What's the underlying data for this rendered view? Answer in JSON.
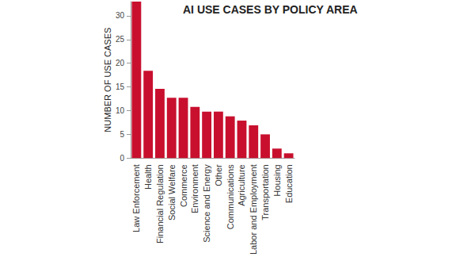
{
  "chart_data": {
    "type": "bar",
    "title": "AI USE CASES BY POLICY AREA",
    "y_label": "NUMBER OF USE CASES",
    "categories": [
      "Law Enforcement",
      "Health",
      "Financial Regulation",
      "Social Welfare",
      "Commerce",
      "Environment",
      "Science and Energy",
      "Other",
      "Communications",
      "Agriculture",
      "Labor and Employment",
      "Transportation",
      "Housing",
      "Education"
    ],
    "values": [
      33,
      18.4,
      14.6,
      12.7,
      12.7,
      10.8,
      9.8,
      9.8,
      8.8,
      7.9,
      6.9,
      5,
      2,
      1
    ],
    "color": "#c8102e",
    "ylim": [
      0,
      33
    ],
    "yticks": [
      0,
      5,
      10,
      15,
      20,
      25,
      30
    ],
    "grid": false
  }
}
